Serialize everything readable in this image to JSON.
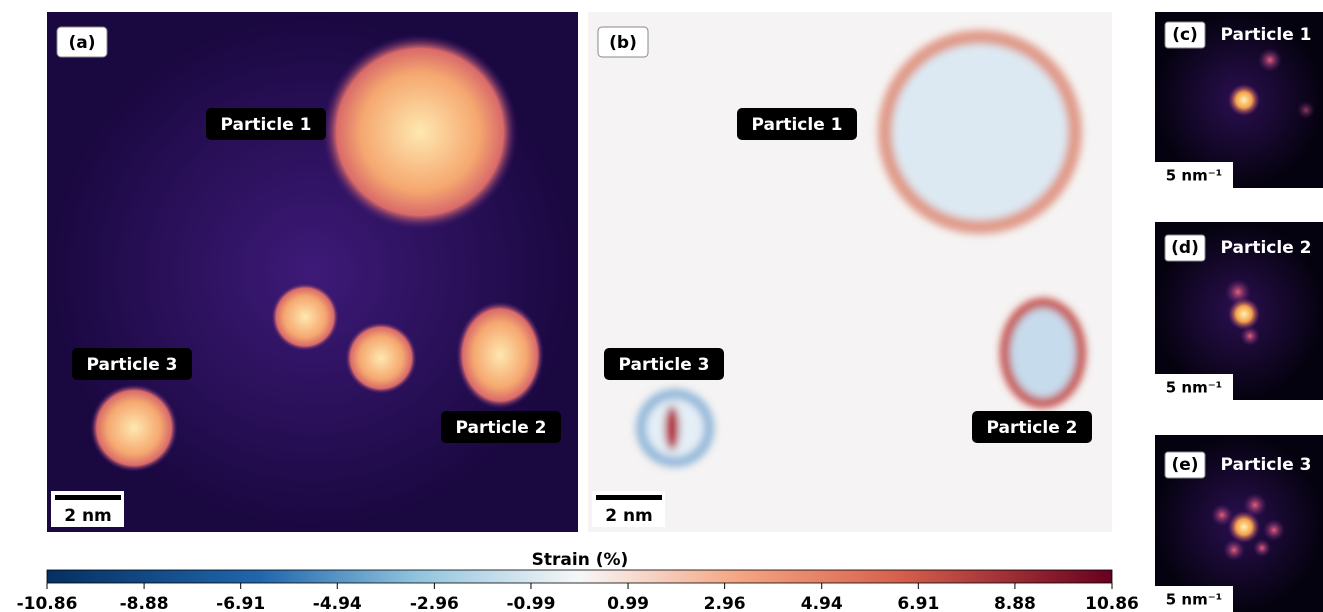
{
  "panels": [
    {
      "label": "(a)",
      "annotations": [
        "Particle 1",
        "Particle 3",
        "Particle 2"
      ],
      "scalebar": "2 nm"
    },
    {
      "label": "(b)",
      "annotations": [
        "Particle 1",
        "Particle 3",
        "Particle 2"
      ],
      "scalebar": "2 nm"
    },
    {
      "label": "(c)",
      "title": "Particle 1",
      "scalebar": "5 nm⁻¹"
    },
    {
      "label": "(d)",
      "title": "Particle 2",
      "scalebar": "5 nm⁻¹"
    },
    {
      "label": "(e)",
      "title": "Particle 3",
      "scalebar": "5 nm⁻¹"
    }
  ],
  "colorbar": {
    "label": "Strain (%)",
    "lim": [
      -10.86,
      10.86
    ],
    "ticks": [
      -10.86,
      -8.88,
      -6.91,
      -4.94,
      -2.96,
      -0.99,
      0.99,
      2.96,
      4.94,
      6.91,
      8.88,
      10.86
    ]
  }
}
